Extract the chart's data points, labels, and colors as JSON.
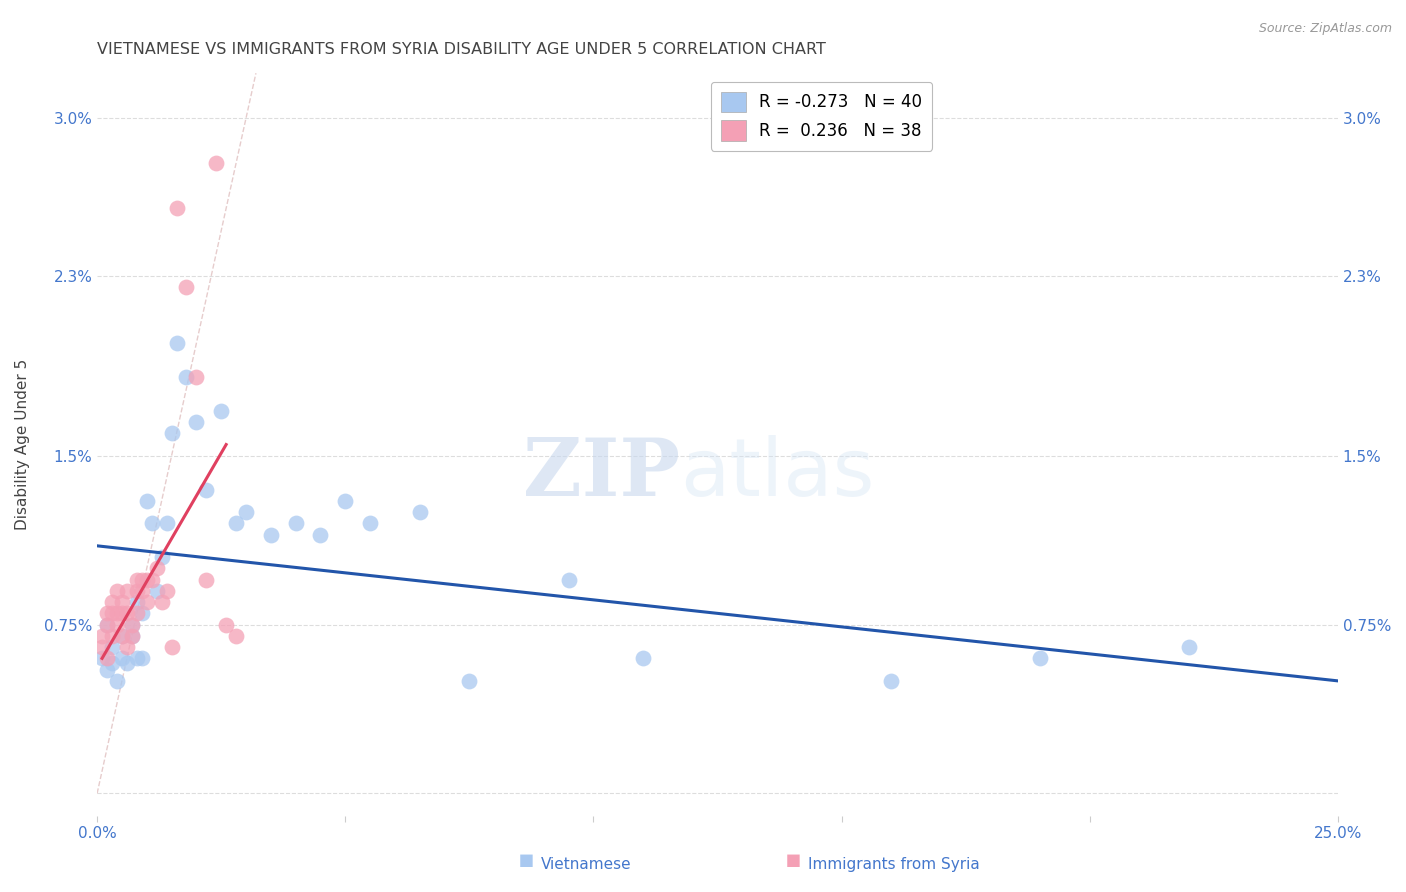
{
  "title": "VIETNAMESE VS IMMIGRANTS FROM SYRIA DISABILITY AGE UNDER 5 CORRELATION CHART",
  "source": "Source: ZipAtlas.com",
  "ylabel": "Disability Age Under 5",
  "xlim": [
    0.0,
    0.25
  ],
  "ylim": [
    -0.001,
    0.032
  ],
  "watermark_zip": "ZIP",
  "watermark_atlas": "atlas",
  "legend_blue_R": "-0.273",
  "legend_blue_N": "40",
  "legend_pink_R": "0.236",
  "legend_pink_N": "38",
  "color_blue": "#a8c8f0",
  "color_pink": "#f4a0b5",
  "trendline_blue_color": "#2255aa",
  "trendline_pink_color": "#e04060",
  "diagonal_color": "#e0c0c0",
  "background_color": "#ffffff",
  "grid_color": "#dddddd",
  "axis_label_color": "#4477cc",
  "title_color": "#444444",
  "ytick_positions": [
    0.0,
    0.0075,
    0.015,
    0.023,
    0.03
  ],
  "ytick_labels": [
    "",
    "0.75%",
    "1.5%",
    "2.3%",
    "3.0%"
  ],
  "xtick_positions": [
    0.0,
    0.05,
    0.1,
    0.15,
    0.2,
    0.25
  ],
  "xtick_labels": [
    "0.0%",
    "",
    "",
    "",
    "",
    "25.0%"
  ],
  "blue_x": [
    0.001,
    0.002,
    0.002,
    0.003,
    0.003,
    0.004,
    0.005,
    0.005,
    0.006,
    0.007,
    0.007,
    0.008,
    0.008,
    0.009,
    0.009,
    0.01,
    0.011,
    0.012,
    0.013,
    0.014,
    0.015,
    0.016,
    0.018,
    0.02,
    0.022,
    0.025,
    0.028,
    0.03,
    0.035,
    0.04,
    0.045,
    0.05,
    0.055,
    0.065,
    0.075,
    0.095,
    0.11,
    0.16,
    0.19,
    0.22
  ],
  "blue_y": [
    0.006,
    0.0055,
    0.0075,
    0.0065,
    0.0058,
    0.005,
    0.007,
    0.006,
    0.0058,
    0.007,
    0.0075,
    0.0085,
    0.006,
    0.006,
    0.008,
    0.013,
    0.012,
    0.009,
    0.0105,
    0.012,
    0.016,
    0.02,
    0.0185,
    0.0165,
    0.0135,
    0.017,
    0.012,
    0.0125,
    0.0115,
    0.012,
    0.0115,
    0.013,
    0.012,
    0.0125,
    0.005,
    0.0095,
    0.006,
    0.005,
    0.006,
    0.0065
  ],
  "pink_x": [
    0.001,
    0.001,
    0.002,
    0.002,
    0.002,
    0.003,
    0.003,
    0.003,
    0.004,
    0.004,
    0.004,
    0.005,
    0.005,
    0.005,
    0.006,
    0.006,
    0.006,
    0.007,
    0.007,
    0.008,
    0.008,
    0.008,
    0.009,
    0.009,
    0.01,
    0.01,
    0.011,
    0.012,
    0.013,
    0.014,
    0.015,
    0.016,
    0.018,
    0.02,
    0.022,
    0.024,
    0.026,
    0.028
  ],
  "pink_y": [
    0.0065,
    0.007,
    0.006,
    0.0075,
    0.008,
    0.007,
    0.008,
    0.0085,
    0.008,
    0.009,
    0.0075,
    0.007,
    0.008,
    0.0085,
    0.008,
    0.009,
    0.0065,
    0.007,
    0.0075,
    0.008,
    0.009,
    0.0095,
    0.009,
    0.0095,
    0.0095,
    0.0085,
    0.0095,
    0.01,
    0.0085,
    0.009,
    0.0065,
    0.026,
    0.0225,
    0.0185,
    0.0095,
    0.028,
    0.0075,
    0.007
  ],
  "blue_trend_x0": 0.0,
  "blue_trend_y0": 0.011,
  "blue_trend_x1": 0.25,
  "blue_trend_y1": 0.005,
  "pink_trend_x0": 0.001,
  "pink_trend_y0": 0.006,
  "pink_trend_x1": 0.026,
  "pink_trend_y1": 0.0155
}
